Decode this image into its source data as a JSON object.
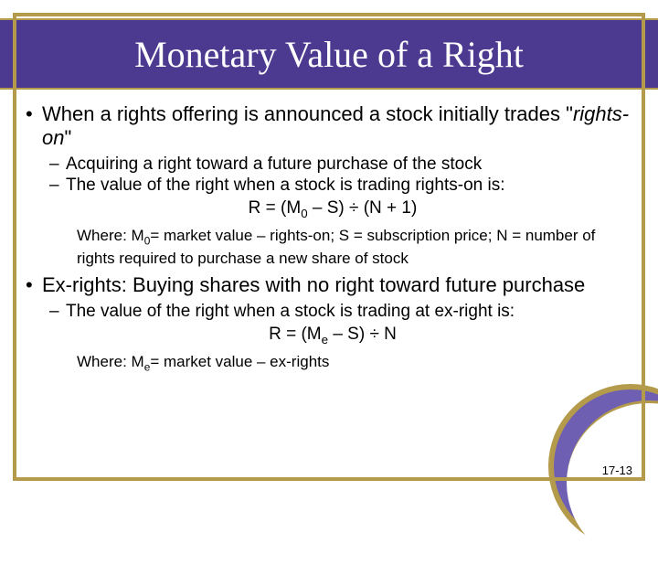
{
  "colors": {
    "header_bg": "#4b3a8f",
    "gold": "#b39b4b",
    "title_text": "#ffffff",
    "body_text": "#000000",
    "arc_fill": "#6f5fb3"
  },
  "typography": {
    "title_font": "Times New Roman",
    "title_size_pt": 40,
    "body_font": "Arial",
    "l1_size_pt": 22,
    "l2_size_pt": 19,
    "where_size_pt": 17,
    "pagenum_size_pt": 13
  },
  "title": "Monetary Value of a Right",
  "bullets": {
    "b1": {
      "text_a": "When a rights offering is announced a stock initially trades \"",
      "text_italic": "rights-on",
      "text_b": "\"",
      "sub": {
        "s1": "Acquiring a right toward a future purchase of the stock",
        "s2": "The value of the right when a stock is trading rights-on is:"
      },
      "formula": "R = (M",
      "formula_sub": "0",
      "formula_b": " – S) ÷ (N + 1)",
      "where_a": "Where: M",
      "where_sub": "0",
      "where_b": "= market value – rights-on; S = subscription price; N = number of rights required to purchase a new share of stock"
    },
    "b2": {
      "text": "Ex-rights: Buying shares with no right toward future purchase",
      "sub": {
        "s1": "The value of the right when a stock is trading at ex-right is:"
      },
      "formula": "R = (M",
      "formula_sub": "e",
      "formula_b": " – S) ÷ N",
      "where_a": "Where: M",
      "where_sub": "e",
      "where_b": "= market value – ex-rights"
    }
  },
  "page_number": "17-13"
}
